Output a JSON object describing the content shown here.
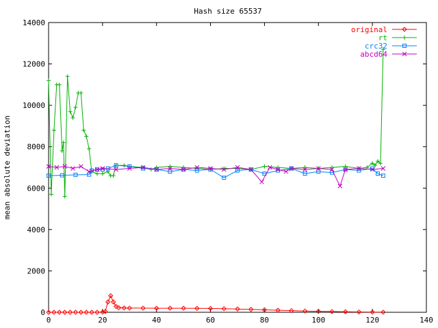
{
  "chart_data": {
    "type": "line",
    "title": "Hash size 65537",
    "xlabel": "",
    "ylabel": "mean absolute deviation",
    "xlim": [
      0,
      140
    ],
    "ylim": [
      0,
      14000
    ],
    "x_ticks": [
      0,
      20,
      40,
      60,
      80,
      100,
      120,
      140
    ],
    "y_ticks": [
      0,
      2000,
      4000,
      6000,
      8000,
      10000,
      12000,
      14000
    ],
    "grid": false,
    "legend_position": "top-right",
    "series": [
      {
        "name": "original",
        "color": "#ff0000",
        "marker": "diamond",
        "points": [
          [
            0,
            0
          ],
          [
            2,
            0
          ],
          [
            4,
            0
          ],
          [
            6,
            0
          ],
          [
            8,
            0
          ],
          [
            10,
            0
          ],
          [
            12,
            0
          ],
          [
            14,
            0
          ],
          [
            16,
            0
          ],
          [
            18,
            0
          ],
          [
            20,
            10
          ],
          [
            21,
            40
          ],
          [
            22,
            500
          ],
          [
            23,
            800
          ],
          [
            24,
            500
          ],
          [
            25,
            280
          ],
          [
            26,
            220
          ],
          [
            28,
            210
          ],
          [
            30,
            200
          ],
          [
            35,
            200
          ],
          [
            40,
            195
          ],
          [
            45,
            195
          ],
          [
            50,
            195
          ],
          [
            55,
            190
          ],
          [
            60,
            185
          ],
          [
            65,
            175
          ],
          [
            70,
            160
          ],
          [
            75,
            140
          ],
          [
            80,
            120
          ],
          [
            85,
            100
          ],
          [
            90,
            80
          ],
          [
            95,
            60
          ],
          [
            100,
            45
          ],
          [
            105,
            35
          ],
          [
            110,
            25
          ],
          [
            115,
            15
          ],
          [
            120,
            10
          ],
          [
            124,
            5
          ]
        ]
      },
      {
        "name": "rt",
        "color": "#00b000",
        "marker": "plus",
        "points": [
          [
            0,
            11200
          ],
          [
            1,
            5700
          ],
          [
            2,
            8800
          ],
          [
            3,
            11000
          ],
          [
            4,
            11000
          ],
          [
            5,
            7800
          ],
          [
            5.5,
            8200
          ],
          [
            6,
            5600
          ],
          [
            7,
            11400
          ],
          [
            8,
            9700
          ],
          [
            9,
            9400
          ],
          [
            10,
            9900
          ],
          [
            11,
            10600
          ],
          [
            12,
            10600
          ],
          [
            13,
            8800
          ],
          [
            14,
            8500
          ],
          [
            15,
            7900
          ],
          [
            16,
            6800
          ],
          [
            18,
            6700
          ],
          [
            20,
            6700
          ],
          [
            22,
            6800
          ],
          [
            23,
            6600
          ],
          [
            24,
            6600
          ],
          [
            25,
            7100
          ],
          [
            28,
            7100
          ],
          [
            30,
            7050
          ],
          [
            35,
            7000
          ],
          [
            38,
            6900
          ],
          [
            40,
            7000
          ],
          [
            45,
            7050
          ],
          [
            50,
            7000
          ],
          [
            55,
            6950
          ],
          [
            60,
            6900
          ],
          [
            65,
            6950
          ],
          [
            70,
            6950
          ],
          [
            75,
            6900
          ],
          [
            80,
            7050
          ],
          [
            85,
            7000
          ],
          [
            90,
            6950
          ],
          [
            95,
            7000
          ],
          [
            100,
            6950
          ],
          [
            105,
            7000
          ],
          [
            110,
            7050
          ],
          [
            115,
            6950
          ],
          [
            118,
            7000
          ],
          [
            120,
            7200
          ],
          [
            121,
            7100
          ],
          [
            122,
            7300
          ],
          [
            123,
            7200
          ],
          [
            124,
            12700
          ]
        ]
      },
      {
        "name": "crc32",
        "color": "#0080ff",
        "marker": "square",
        "points": [
          [
            0,
            6600
          ],
          [
            5,
            6620
          ],
          [
            10,
            6640
          ],
          [
            15,
            6650
          ],
          [
            16,
            6850
          ],
          [
            18,
            6900
          ],
          [
            20,
            6900
          ],
          [
            22,
            6950
          ],
          [
            25,
            7100
          ],
          [
            30,
            7050
          ],
          [
            35,
            6950
          ],
          [
            40,
            6900
          ],
          [
            45,
            6800
          ],
          [
            50,
            6900
          ],
          [
            55,
            6850
          ],
          [
            60,
            6900
          ],
          [
            65,
            6500
          ],
          [
            70,
            6850
          ],
          [
            75,
            6900
          ],
          [
            80,
            6700
          ],
          [
            85,
            6850
          ],
          [
            90,
            6950
          ],
          [
            95,
            6700
          ],
          [
            100,
            6800
          ],
          [
            105,
            6750
          ],
          [
            110,
            6900
          ],
          [
            115,
            6850
          ],
          [
            120,
            6950
          ],
          [
            122,
            6700
          ],
          [
            124,
            6600
          ]
        ]
      },
      {
        "name": "abcd64",
        "color": "#c000c0",
        "marker": "x",
        "points": [
          [
            0,
            7050
          ],
          [
            3,
            7000
          ],
          [
            6,
            7050
          ],
          [
            9,
            6950
          ],
          [
            12,
            7050
          ],
          [
            15,
            6800
          ],
          [
            18,
            6900
          ],
          [
            20,
            6950
          ],
          [
            25,
            6900
          ],
          [
            30,
            6950
          ],
          [
            35,
            7000
          ],
          [
            40,
            6900
          ],
          [
            45,
            6950
          ],
          [
            50,
            6900
          ],
          [
            55,
            7000
          ],
          [
            60,
            6950
          ],
          [
            65,
            6900
          ],
          [
            70,
            7000
          ],
          [
            75,
            6900
          ],
          [
            79,
            6300
          ],
          [
            82,
            7000
          ],
          [
            85,
            6900
          ],
          [
            88,
            6800
          ],
          [
            90,
            6950
          ],
          [
            95,
            6900
          ],
          [
            100,
            6950
          ],
          [
            105,
            6900
          ],
          [
            108,
            6100
          ],
          [
            110,
            6900
          ],
          [
            115,
            6950
          ],
          [
            120,
            6900
          ],
          [
            124,
            6950
          ]
        ]
      }
    ]
  }
}
